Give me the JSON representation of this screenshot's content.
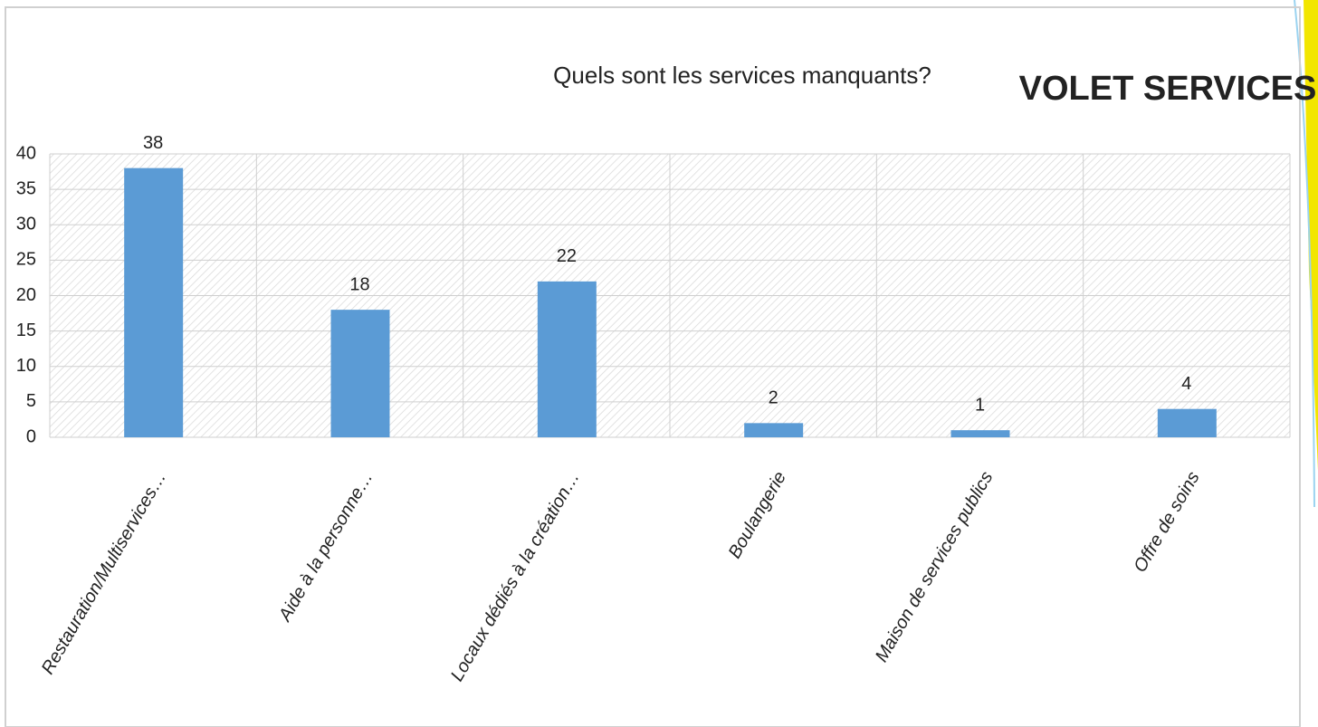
{
  "header": "VOLET SERVICES",
  "chart_data": {
    "type": "bar",
    "title": "Quels sont les services manquants?",
    "categories": [
      "Restauration/Multiservices…",
      "Aide à la personne…",
      "Locaux dédiés à la création…",
      "Boulangerie",
      "Maison de services publics",
      "Offre de soins"
    ],
    "values": [
      38,
      18,
      22,
      2,
      1,
      4
    ],
    "color": "#5b9bd5",
    "ylim": [
      0,
      40
    ],
    "yticks": [
      0,
      5,
      10,
      15,
      20,
      25,
      30,
      35,
      40
    ],
    "grid": true
  }
}
